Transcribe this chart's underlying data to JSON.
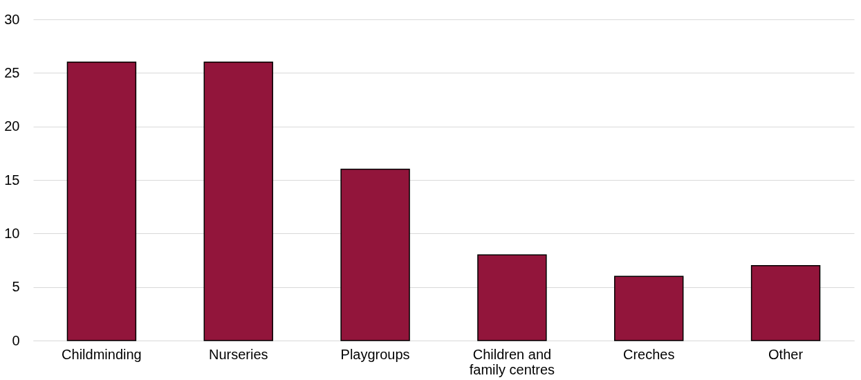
{
  "chart_data": {
    "type": "bar",
    "categories": [
      "Childminding",
      "Nurseries",
      "Playgroups",
      "Children and family centres",
      "Creches",
      "Other"
    ],
    "values": [
      26,
      26,
      16,
      8,
      6,
      7
    ],
    "color": "#92153b",
    "ylim": [
      0,
      30
    ],
    "yticks": [
      0,
      5,
      10,
      15,
      20,
      25,
      30
    ],
    "grid": "y"
  }
}
